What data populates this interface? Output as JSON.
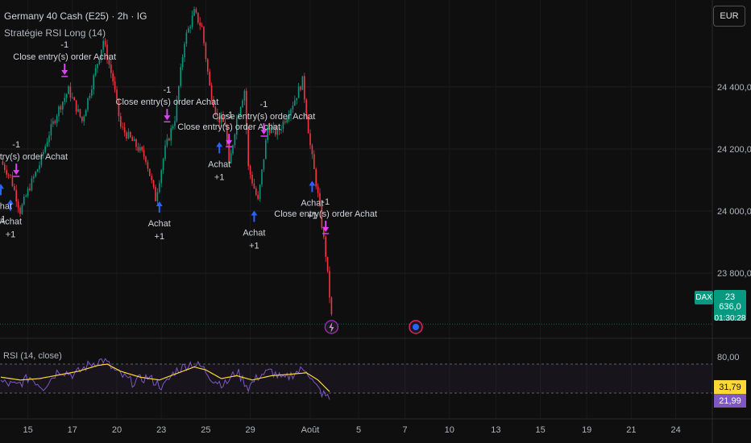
{
  "header": {
    "title": "Germany 40 Cash (E25) · 2h · IG",
    "strategy": "Stratégie RSI Long (14)",
    "currency": "EUR"
  },
  "price_tags": {
    "symbol": "DAX",
    "last_price": "23 636,0",
    "countdown": "01:30:28",
    "rsi_value": "31,79",
    "rsi_ma_value": "21,99"
  },
  "rsi_panel": {
    "label": "RSI (14, close)"
  },
  "colors": {
    "up": "#089981",
    "down": "#f23645",
    "buy": "#2962ff",
    "close": "#e040fb",
    "rsi": "#7e57c2",
    "rsi_ma": "#fdd835"
  },
  "chart_data": [
    {
      "type": "candlestick",
      "y_ticks": [
        "24 400,0",
        "24 200,0",
        "24 000,0",
        "23 800,0"
      ],
      "y_tick_values": [
        24400,
        24200,
        24000,
        23800
      ],
      "ylim": [
        23590,
        24680
      ],
      "x_ticks": [
        "15",
        "17",
        "20",
        "23",
        "25",
        "29",
        "Août",
        "5",
        "7",
        "10",
        "13",
        "15",
        "19",
        "21",
        "24"
      ],
      "x_tick_bar_index": [
        14,
        37,
        60,
        83,
        106,
        129,
        160,
        185,
        209,
        232,
        256,
        279,
        303,
        326,
        349
      ],
      "close_path": [
        [
          0,
          24160
        ],
        [
          5,
          24110
        ],
        [
          10,
          24000
        ],
        [
          15,
          24080
        ],
        [
          20,
          24150
        ],
        [
          25,
          24250
        ],
        [
          30,
          24330
        ],
        [
          35,
          24390
        ],
        [
          42,
          24290
        ],
        [
          48,
          24430
        ],
        [
          53,
          24550
        ],
        [
          58,
          24420
        ],
        [
          62,
          24270
        ],
        [
          70,
          24210
        ],
        [
          75,
          24170
        ],
        [
          80,
          24040
        ],
        [
          85,
          24200
        ],
        [
          90,
          24300
        ],
        [
          95,
          24550
        ],
        [
          100,
          24640
        ],
        [
          104,
          24590
        ],
        [
          108,
          24400
        ],
        [
          112,
          24300
        ],
        [
          116,
          24280
        ],
        [
          118,
          24140
        ],
        [
          122,
          24300
        ],
        [
          126,
          24390
        ],
        [
          128,
          24140
        ],
        [
          133,
          24030
        ],
        [
          138,
          24270
        ],
        [
          143,
          24250
        ],
        [
          148,
          24310
        ],
        [
          152,
          24360
        ],
        [
          156,
          24420
        ],
        [
          160,
          24210
        ],
        [
          164,
          24050
        ],
        [
          168,
          23860
        ],
        [
          171,
          23660
        ]
      ],
      "last_price": 23636.0,
      "annotations": [
        {
          "bar": 5,
          "type": "entry",
          "label": "Achat",
          "qty": "+1"
        },
        {
          "bar": 0,
          "type": "entry",
          "label": "Achat",
          "qty": "+1"
        },
        {
          "bar": 82,
          "type": "entry",
          "label": "Achat",
          "qty": "+1"
        },
        {
          "bar": 113,
          "type": "entry",
          "label": "Achat",
          "qty": "+1"
        },
        {
          "bar": 131,
          "type": "entry",
          "label": "Achat",
          "qty": "+1"
        },
        {
          "bar": 161,
          "type": "entry",
          "label": "Achat",
          "qty": "+1"
        },
        {
          "bar": 8,
          "type": "exit",
          "label": "Close entry(s) order Achat",
          "qty": "-1"
        },
        {
          "bar": 33,
          "type": "exit",
          "label": "Close entry(s) order Achat",
          "qty": "-1"
        },
        {
          "bar": 86,
          "type": "exit",
          "label": "Close entry(s) order Achat",
          "qty": "-1"
        },
        {
          "bar": 118,
          "type": "exit",
          "label": "Close entry(s) order Achat",
          "qty": "-1"
        },
        {
          "bar": 136,
          "type": "exit",
          "label": "Close entry(s) order Achat",
          "qty": "-1"
        },
        {
          "bar": 168,
          "type": "exit",
          "label": "Close entry(s) order Achat",
          "qty": "-1"
        }
      ]
    },
    {
      "type": "line",
      "title": "RSI (14, close)",
      "y_ticks": [
        "80,00"
      ],
      "ylim": [
        0,
        100
      ],
      "levels": [
        70,
        30
      ],
      "series": [
        {
          "values_path": [
            [
              0,
              45
            ],
            [
              8,
              40
            ],
            [
              15,
              52
            ],
            [
              22,
              38
            ],
            [
              30,
              62
            ],
            [
              38,
              55
            ],
            [
              46,
              70
            ],
            [
              53,
              76
            ],
            [
              60,
              58
            ],
            [
              68,
              45
            ],
            [
              76,
              52
            ],
            [
              84,
              38
            ],
            [
              90,
              60
            ],
            [
              98,
              71
            ],
            [
              104,
              66
            ],
            [
              110,
              48
            ],
            [
              116,
              42
            ],
            [
              122,
              60
            ],
            [
              128,
              38
            ],
            [
              134,
              55
            ],
            [
              140,
              60
            ],
            [
              146,
              48
            ],
            [
              152,
              58
            ],
            [
              158,
              64
            ],
            [
              162,
              42
            ],
            [
              166,
              30
            ],
            [
              170,
              22
            ]
          ]
        },
        {
          "values_path": [
            [
              0,
              52
            ],
            [
              10,
              48
            ],
            [
              20,
              50
            ],
            [
              30,
              55
            ],
            [
              40,
              60
            ],
            [
              50,
              68
            ],
            [
              55,
              70
            ],
            [
              62,
              60
            ],
            [
              72,
              52
            ],
            [
              82,
              48
            ],
            [
              92,
              58
            ],
            [
              100,
              66
            ],
            [
              106,
              62
            ],
            [
              114,
              50
            ],
            [
              122,
              54
            ],
            [
              130,
              48
            ],
            [
              140,
              54
            ],
            [
              150,
              56
            ],
            [
              158,
              58
            ],
            [
              164,
              48
            ],
            [
              170,
              32
            ]
          ]
        }
      ]
    }
  ]
}
